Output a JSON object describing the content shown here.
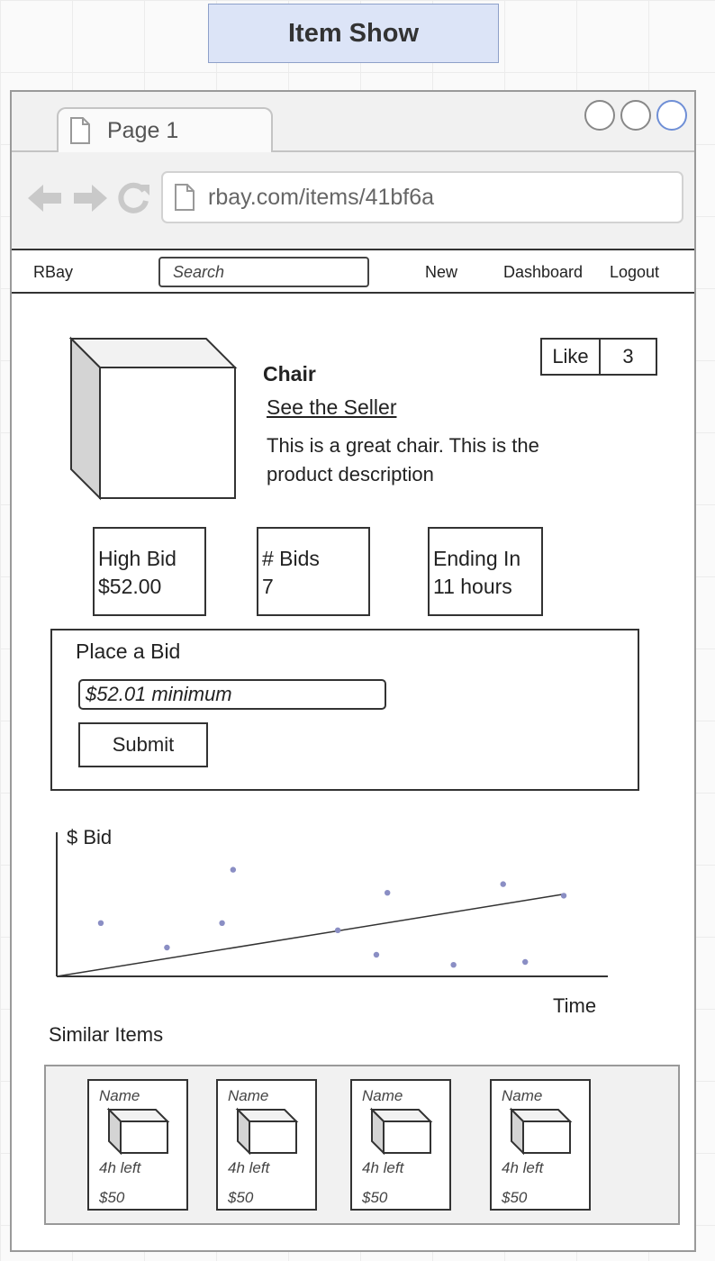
{
  "header": {
    "title": "Item Show"
  },
  "browser": {
    "tab_label": "Page 1",
    "url": "rbay.com/items/41bf6a"
  },
  "nav": {
    "brand": "RBay",
    "search_placeholder": "Search",
    "links": [
      "New",
      "Dashboard",
      "Logout"
    ]
  },
  "product": {
    "title": "Chair",
    "seller_link": "See the Seller",
    "description": "This is a great chair.  This is the product description",
    "like_label": "Like",
    "like_count": "3"
  },
  "stats": [
    {
      "label": "High Bid",
      "value": "$52.00"
    },
    {
      "label": "# Bids",
      "value": "7"
    },
    {
      "label": "Ending In",
      "value": "11 hours"
    }
  ],
  "bid": {
    "title": "Place a Bid",
    "input_placeholder": "$52.01 minimum",
    "submit_label": "Submit"
  },
  "chart_data": {
    "type": "scatter",
    "ylabel": "$ Bid",
    "xlabel": "Time",
    "xlim": [
      0,
      100
    ],
    "ylim": [
      0,
      100
    ],
    "points": [
      {
        "x": 8,
        "y": 37
      },
      {
        "x": 20,
        "y": 20
      },
      {
        "x": 30,
        "y": 37
      },
      {
        "x": 32,
        "y": 74
      },
      {
        "x": 51,
        "y": 32
      },
      {
        "x": 58,
        "y": 15
      },
      {
        "x": 60,
        "y": 58
      },
      {
        "x": 72,
        "y": 8
      },
      {
        "x": 81,
        "y": 64
      },
      {
        "x": 85,
        "y": 10
      },
      {
        "x": 92,
        "y": 56
      }
    ],
    "trend": [
      {
        "x": 0,
        "y": 0
      },
      {
        "x": 92,
        "y": 57
      }
    ]
  },
  "similar": {
    "title": "Similar Items",
    "items": [
      {
        "name": "Name",
        "time_left": "4h left",
        "price": "$50"
      },
      {
        "name": "Name",
        "time_left": "4h left",
        "price": "$50"
      },
      {
        "name": "Name",
        "time_left": "4h left",
        "price": "$50"
      },
      {
        "name": "Name",
        "time_left": "4h left",
        "price": "$50"
      }
    ]
  },
  "colors": {
    "title_bg": "#dce4f7",
    "chart_point": "#8a8ec4",
    "window_button_accent": "#6f8fd6"
  }
}
